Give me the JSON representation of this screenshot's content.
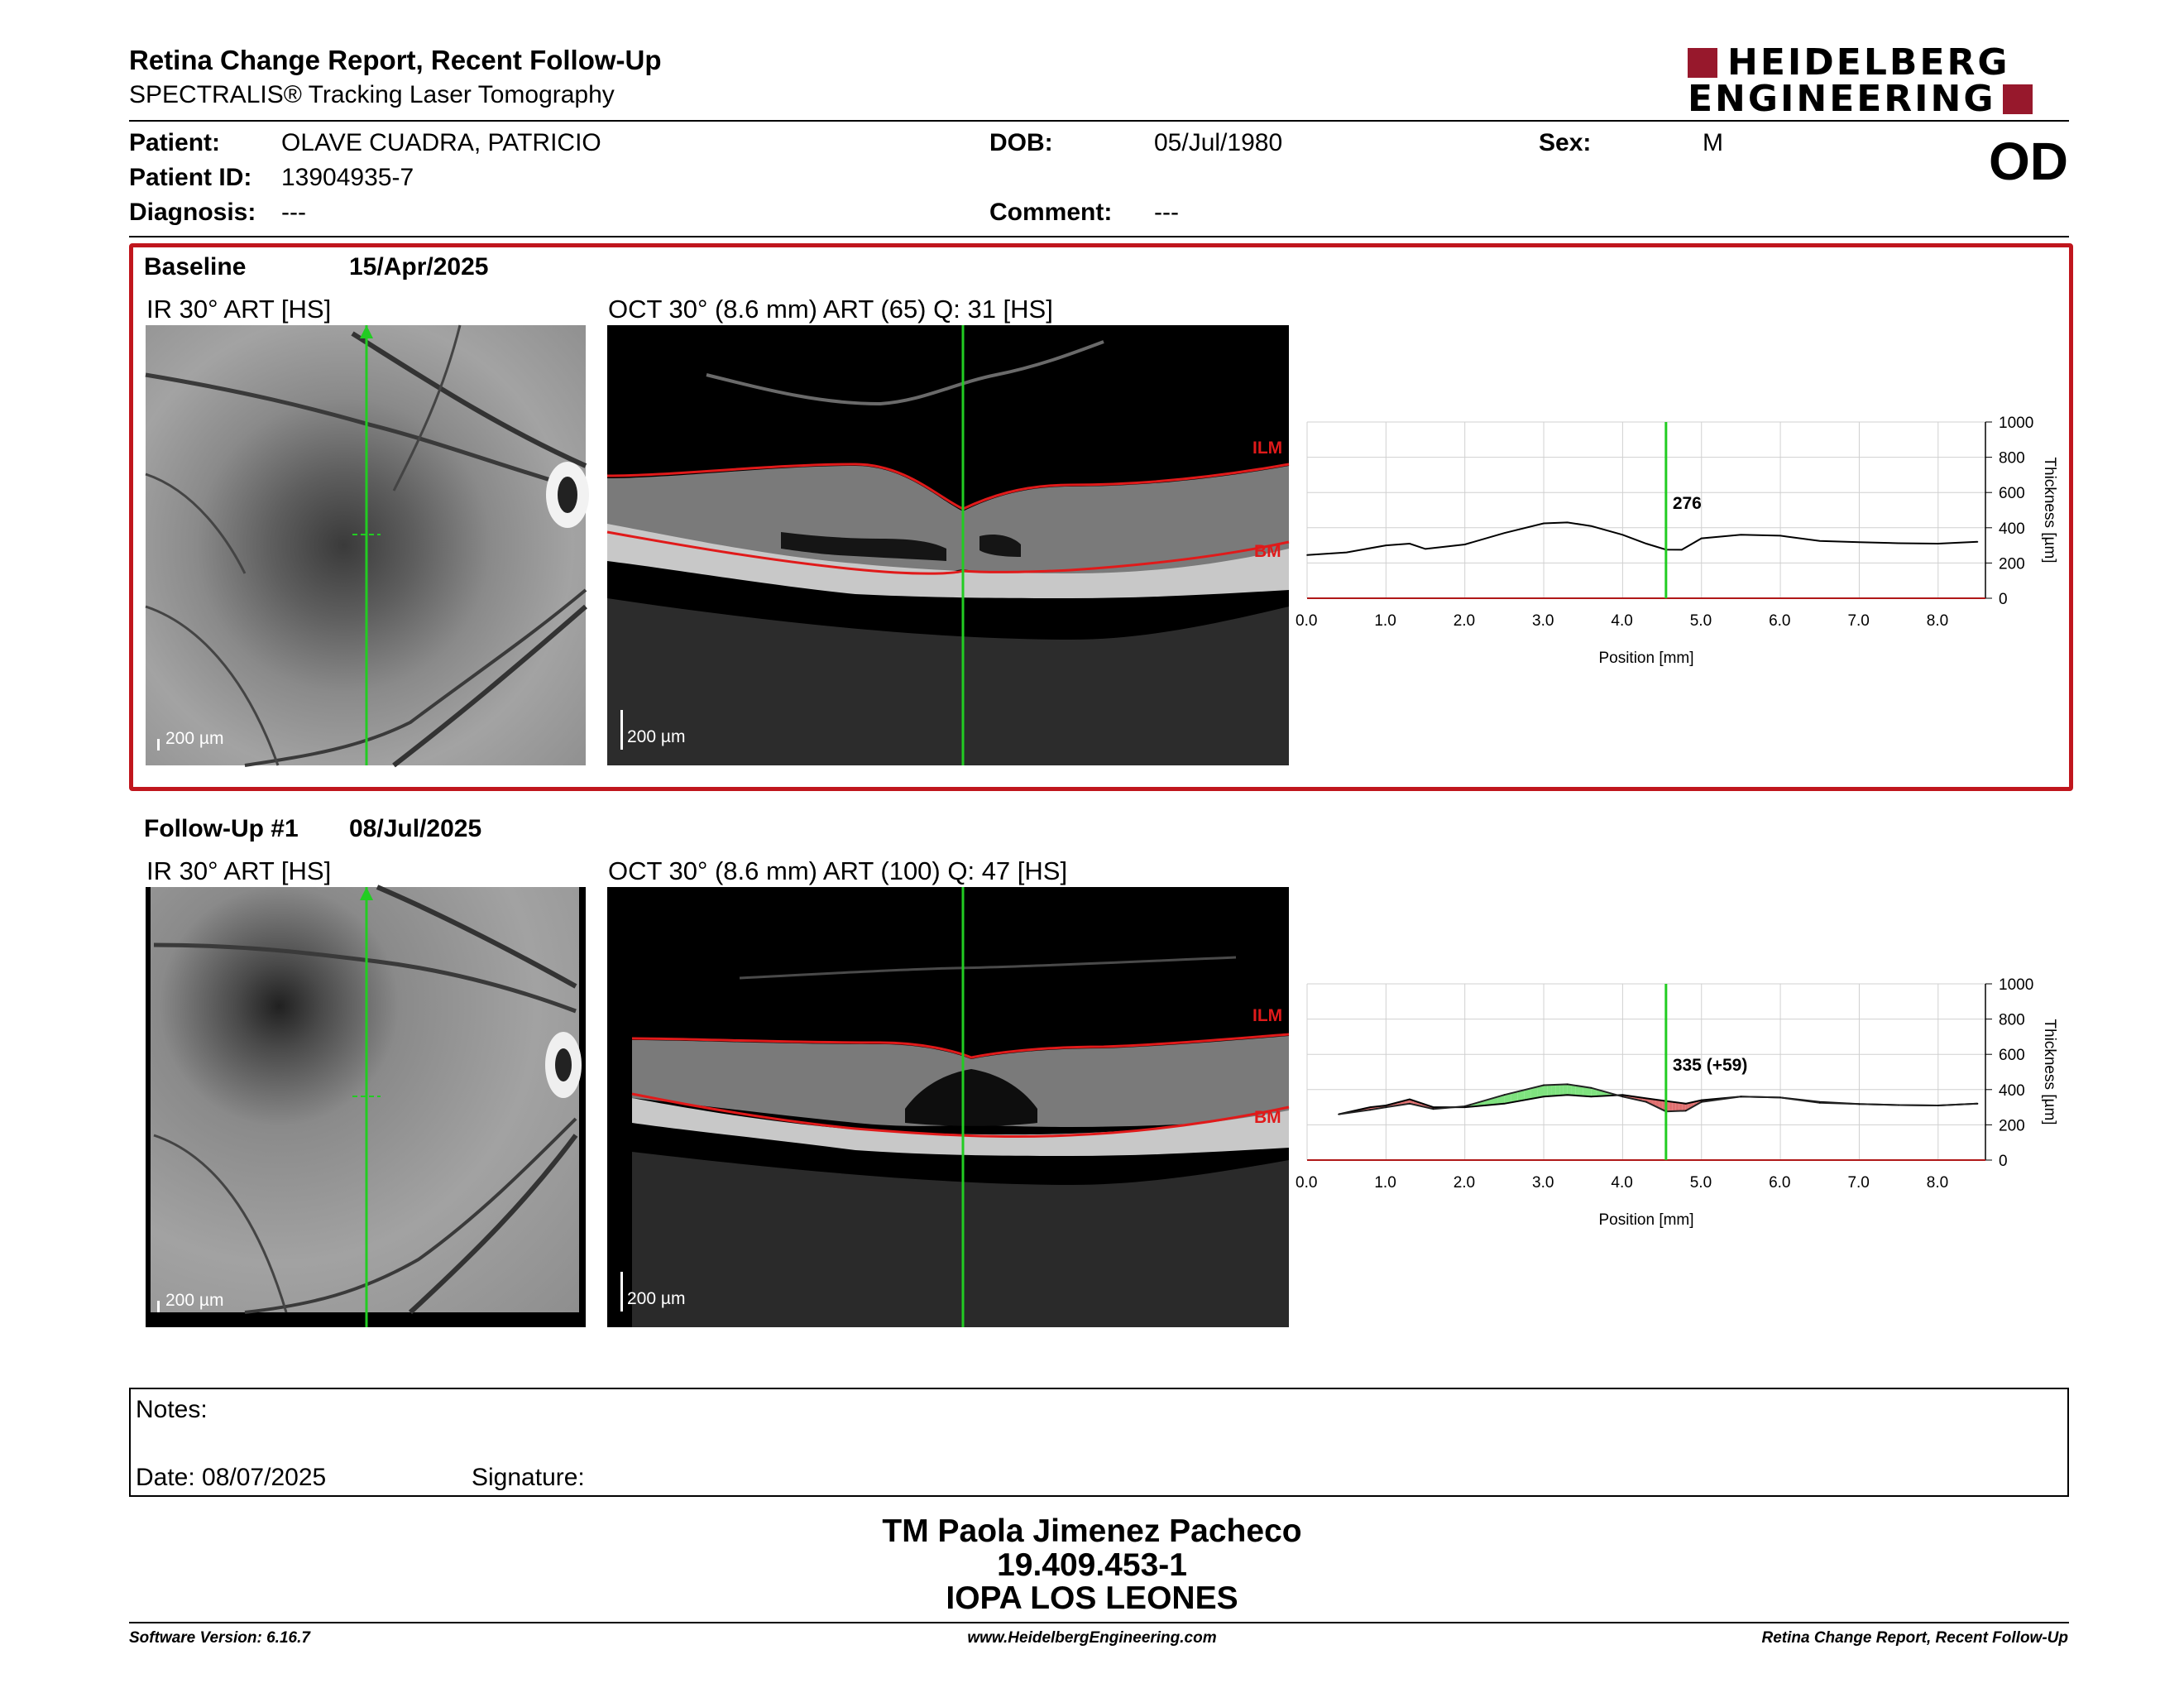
{
  "header": {
    "title": "Retina Change Report, Recent Follow-Up",
    "subtitle": "SPECTRALIS® Tracking Laser Tomography",
    "logo_line1": "HEIDELBERG",
    "logo_line2": "ENGINEERING",
    "eye": "OD"
  },
  "patient": {
    "patient_label": "Patient:",
    "patient_value": "OLAVE CUADRA, PATRICIO",
    "id_label": "Patient ID:",
    "id_value": "13904935-7",
    "diagnosis_label": "Diagnosis:",
    "diagnosis_value": "---",
    "dob_label": "DOB:",
    "dob_value": "05/Jul/1980",
    "comment_label": "Comment:",
    "comment_value": "---",
    "sex_label": "Sex:",
    "sex_value": "M"
  },
  "baseline": {
    "label": "Baseline",
    "date": "15/Apr/2025",
    "ir_caption": "IR 30° ART [HS]",
    "oct_caption": "OCT 30° (8.6 mm) ART (65) Q: 31 [HS]",
    "scale": "200 µm",
    "ilm": "ILM",
    "bm": "BM"
  },
  "followup": {
    "label": "Follow-Up #1",
    "date": "08/Jul/2025",
    "ir_caption": "IR 30° ART [HS]",
    "oct_caption": "OCT 30° (8.6 mm) ART (100) Q: 47 [HS]",
    "scale": "200 µm",
    "ilm": "ILM",
    "bm": "BM"
  },
  "chart_data": [
    {
      "type": "line",
      "xlabel": "Position [mm]",
      "ylabel": "Thickness [µm]",
      "xlim": [
        0,
        8.6
      ],
      "ylim": [
        0,
        1000
      ],
      "x_ticks": [
        "0.0",
        "1.0",
        "2.0",
        "3.0",
        "4.0",
        "5.0",
        "6.0",
        "7.0",
        "8.0"
      ],
      "y_ticks": [
        "0",
        "200",
        "400",
        "600",
        "800",
        "1000"
      ],
      "marker_x": 4.55,
      "marker_label": "276",
      "series": [
        {
          "x": [
            0.0,
            0.5,
            1.0,
            1.3,
            1.5,
            2.0,
            2.5,
            3.0,
            3.3,
            3.6,
            4.0,
            4.3,
            4.55,
            4.75,
            5.0,
            5.5,
            6.0,
            6.5,
            7.0,
            7.5,
            8.0,
            8.5
          ],
          "y": [
            245,
            260,
            300,
            310,
            280,
            305,
            370,
            425,
            430,
            410,
            360,
            310,
            276,
            275,
            340,
            360,
            355,
            325,
            318,
            312,
            310,
            320
          ]
        }
      ]
    },
    {
      "type": "line",
      "xlabel": "Position [mm]",
      "ylabel": "Thickness [µm]",
      "xlim": [
        0,
        8.6
      ],
      "ylim": [
        0,
        1000
      ],
      "x_ticks": [
        "0.0",
        "1.0",
        "2.0",
        "3.0",
        "4.0",
        "5.0",
        "6.0",
        "7.0",
        "8.0"
      ],
      "y_ticks": [
        "0",
        "200",
        "400",
        "600",
        "800",
        "1000"
      ],
      "marker_x": 4.55,
      "marker_label": "335 (+59)",
      "series": [
        {
          "x": [
            0.4,
            0.8,
            1.0,
            1.3,
            1.6,
            2.0,
            2.5,
            3.0,
            3.3,
            3.6,
            4.0,
            4.3,
            4.55,
            4.8,
            5.0,
            5.5,
            6.0,
            6.5,
            7.0,
            7.5,
            8.0,
            8.5
          ],
          "y": [
            260,
            300,
            310,
            345,
            300,
            300,
            320,
            360,
            370,
            360,
            370,
            350,
            335,
            320,
            340,
            360,
            355,
            330,
            318,
            312,
            310,
            320
          ]
        },
        {
          "x": [
            0.4,
            0.8,
            1.0,
            1.3,
            1.6,
            2.0,
            2.5,
            3.0,
            3.3,
            3.6,
            4.0,
            4.3,
            4.55,
            4.8,
            5.0,
            5.5,
            6.0,
            6.5,
            7.0,
            7.5,
            8.0,
            8.5
          ],
          "y": [
            260,
            285,
            300,
            320,
            290,
            305,
            370,
            425,
            430,
            410,
            360,
            330,
            276,
            280,
            330,
            360,
            355,
            325,
            318,
            312,
            310,
            320
          ]
        }
      ]
    }
  ],
  "colors": {
    "accent": "#c0161d",
    "logo": "#97182c",
    "marker": "#22cc22",
    "increase": "#7fe27f",
    "decrease": "#e07070"
  },
  "notes": {
    "label": "Notes:",
    "date_label": "Date: 08/07/2025",
    "signature_label": "Signature:"
  },
  "signature_block": {
    "name": "TM Paola Jimenez Pacheco",
    "rut": "19.409.453-1",
    "institution": "IOPA LOS LEONES"
  },
  "footer": {
    "version": "Software Version: 6.16.7",
    "url": "www.HeidelbergEngineering.com",
    "report": "Retina Change Report, Recent Follow-Up"
  }
}
